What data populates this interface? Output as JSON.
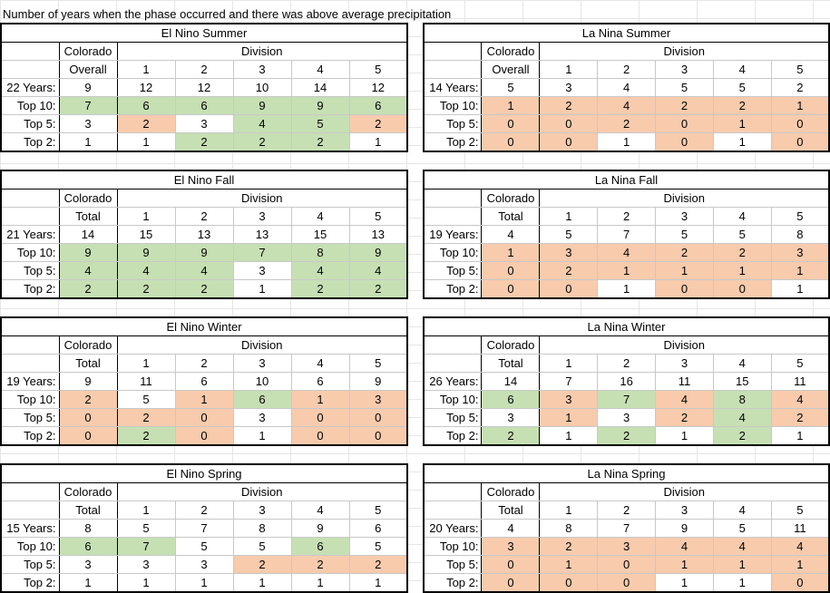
{
  "title": "Number of years when the phase occurred and there was above average precipitation",
  "colors": {
    "green": "#c6e0b4",
    "orange": "#f8cbad",
    "white": "#ffffff"
  },
  "tables": [
    {
      "name": "El Nino Summer",
      "colorado_label": "Colorado",
      "overall_label": "Overall",
      "division_label": "Division",
      "divisions": [
        "1",
        "2",
        "3",
        "4",
        "5"
      ],
      "rows": [
        {
          "label": "22 Years:",
          "values": [
            "9",
            "12",
            "12",
            "10",
            "14",
            "12"
          ],
          "colors": [
            "w",
            "w",
            "w",
            "w",
            "w",
            "w"
          ]
        },
        {
          "label": "Top 10:",
          "values": [
            "7",
            "6",
            "6",
            "9",
            "9",
            "6"
          ],
          "colors": [
            "g",
            "g",
            "g",
            "g",
            "g",
            "g"
          ]
        },
        {
          "label": "Top 5:",
          "values": [
            "3",
            "2",
            "3",
            "4",
            "5",
            "2"
          ],
          "colors": [
            "w",
            "o",
            "w",
            "g",
            "g",
            "o"
          ]
        },
        {
          "label": "Top 2:",
          "values": [
            "1",
            "1",
            "2",
            "2",
            "2",
            "1"
          ],
          "colors": [
            "w",
            "w",
            "g",
            "g",
            "g",
            "w"
          ]
        }
      ]
    },
    {
      "name": "La Nina Summer",
      "colorado_label": "Colorado",
      "overall_label": "Overall",
      "division_label": "Division",
      "divisions": [
        "1",
        "2",
        "3",
        "4",
        "5"
      ],
      "rows": [
        {
          "label": "14 Years:",
          "values": [
            "5",
            "3",
            "4",
            "5",
            "5",
            "2"
          ],
          "colors": [
            "w",
            "w",
            "w",
            "w",
            "w",
            "w"
          ]
        },
        {
          "label": "Top 10:",
          "values": [
            "1",
            "2",
            "4",
            "2",
            "2",
            "1"
          ],
          "colors": [
            "o",
            "o",
            "o",
            "o",
            "o",
            "o"
          ]
        },
        {
          "label": "Top 5:",
          "values": [
            "0",
            "0",
            "2",
            "0",
            "1",
            "0"
          ],
          "colors": [
            "o",
            "o",
            "o",
            "o",
            "o",
            "o"
          ]
        },
        {
          "label": "Top 2:",
          "values": [
            "0",
            "0",
            "1",
            "0",
            "1",
            "0"
          ],
          "colors": [
            "o",
            "o",
            "w",
            "o",
            "w",
            "o"
          ]
        }
      ]
    },
    {
      "name": "El Nino Fall",
      "colorado_label": "Colorado",
      "overall_label": "Total",
      "division_label": "Division",
      "divisions": [
        "1",
        "2",
        "3",
        "4",
        "5"
      ],
      "rows": [
        {
          "label": "21 Years:",
          "values": [
            "14",
            "15",
            "13",
            "13",
            "15",
            "13"
          ],
          "colors": [
            "w",
            "w",
            "w",
            "w",
            "w",
            "w"
          ]
        },
        {
          "label": "Top 10:",
          "values": [
            "9",
            "9",
            "9",
            "7",
            "8",
            "9"
          ],
          "colors": [
            "g",
            "g",
            "g",
            "g",
            "g",
            "g"
          ]
        },
        {
          "label": "Top 5:",
          "values": [
            "4",
            "4",
            "4",
            "3",
            "4",
            "4"
          ],
          "colors": [
            "g",
            "g",
            "g",
            "w",
            "g",
            "g"
          ]
        },
        {
          "label": "Top 2:",
          "values": [
            "2",
            "2",
            "2",
            "1",
            "2",
            "2"
          ],
          "colors": [
            "g",
            "g",
            "g",
            "w",
            "g",
            "g"
          ]
        }
      ]
    },
    {
      "name": "La Nina Fall",
      "colorado_label": "Colorado",
      "overall_label": "Total",
      "division_label": "Division",
      "divisions": [
        "1",
        "2",
        "3",
        "4",
        "5"
      ],
      "rows": [
        {
          "label": "19 Years:",
          "values": [
            "4",
            "5",
            "7",
            "5",
            "5",
            "8"
          ],
          "colors": [
            "w",
            "w",
            "w",
            "w",
            "w",
            "w"
          ]
        },
        {
          "label": "Top 10:",
          "values": [
            "1",
            "3",
            "4",
            "2",
            "2",
            "3"
          ],
          "colors": [
            "o",
            "o",
            "o",
            "o",
            "o",
            "o"
          ]
        },
        {
          "label": "Top 5:",
          "values": [
            "0",
            "2",
            "1",
            "1",
            "1",
            "1"
          ],
          "colors": [
            "o",
            "o",
            "o",
            "o",
            "o",
            "o"
          ]
        },
        {
          "label": "Top 2:",
          "values": [
            "0",
            "0",
            "1",
            "0",
            "0",
            "1"
          ],
          "colors": [
            "o",
            "o",
            "w",
            "o",
            "o",
            "w"
          ]
        }
      ]
    },
    {
      "name": "El Nino Winter",
      "colorado_label": "Colorado",
      "overall_label": "Total",
      "division_label": "Division",
      "divisions": [
        "1",
        "2",
        "3",
        "4",
        "5"
      ],
      "rows": [
        {
          "label": "19 Years:",
          "values": [
            "9",
            "11",
            "6",
            "10",
            "6",
            "9"
          ],
          "colors": [
            "w",
            "w",
            "w",
            "w",
            "w",
            "w"
          ]
        },
        {
          "label": "Top 10:",
          "values": [
            "2",
            "5",
            "1",
            "6",
            "1",
            "3"
          ],
          "colors": [
            "o",
            "w",
            "o",
            "g",
            "o",
            "o"
          ]
        },
        {
          "label": "Top 5:",
          "values": [
            "0",
            "2",
            "0",
            "3",
            "0",
            "0"
          ],
          "colors": [
            "o",
            "o",
            "o",
            "w",
            "o",
            "o"
          ]
        },
        {
          "label": "Top 2:",
          "values": [
            "0",
            "2",
            "0",
            "1",
            "0",
            "0"
          ],
          "colors": [
            "o",
            "g",
            "o",
            "w",
            "o",
            "o"
          ]
        }
      ]
    },
    {
      "name": "La Nina Winter",
      "colorado_label": "Colorado",
      "overall_label": "Total",
      "division_label": "Division",
      "divisions": [
        "1",
        "2",
        "3",
        "4",
        "5"
      ],
      "rows": [
        {
          "label": "26 Years:",
          "values": [
            "14",
            "7",
            "16",
            "11",
            "15",
            "11"
          ],
          "colors": [
            "w",
            "w",
            "w",
            "w",
            "w",
            "w"
          ]
        },
        {
          "label": "Top 10:",
          "values": [
            "6",
            "3",
            "7",
            "4",
            "8",
            "4"
          ],
          "colors": [
            "g",
            "o",
            "g",
            "o",
            "g",
            "o"
          ]
        },
        {
          "label": "Top 5:",
          "values": [
            "3",
            "1",
            "3",
            "2",
            "4",
            "2"
          ],
          "colors": [
            "w",
            "o",
            "w",
            "o",
            "g",
            "o"
          ]
        },
        {
          "label": "Top 2:",
          "values": [
            "2",
            "1",
            "2",
            "1",
            "2",
            "1"
          ],
          "colors": [
            "g",
            "w",
            "g",
            "w",
            "g",
            "w"
          ]
        }
      ]
    },
    {
      "name": "El Nino Spring",
      "colorado_label": "Colorado",
      "overall_label": "Total",
      "division_label": "Division",
      "divisions": [
        "1",
        "2",
        "3",
        "4",
        "5"
      ],
      "rows": [
        {
          "label": "15 Years:",
          "values": [
            "8",
            "5",
            "7",
            "8",
            "9",
            "6"
          ],
          "colors": [
            "w",
            "w",
            "w",
            "w",
            "w",
            "w"
          ]
        },
        {
          "label": "Top 10:",
          "values": [
            "6",
            "7",
            "5",
            "5",
            "6",
            "5"
          ],
          "colors": [
            "g",
            "g",
            "w",
            "w",
            "g",
            "w"
          ]
        },
        {
          "label": "Top 5:",
          "values": [
            "3",
            "3",
            "3",
            "2",
            "2",
            "2"
          ],
          "colors": [
            "w",
            "w",
            "w",
            "o",
            "o",
            "o"
          ]
        },
        {
          "label": "Top 2:",
          "values": [
            "1",
            "1",
            "1",
            "1",
            "1",
            "1"
          ],
          "colors": [
            "w",
            "w",
            "w",
            "w",
            "w",
            "w"
          ]
        }
      ]
    },
    {
      "name": "La Nina Spring",
      "colorado_label": "Colorado",
      "overall_label": "Total",
      "division_label": "Division",
      "divisions": [
        "1",
        "2",
        "3",
        "4",
        "5"
      ],
      "rows": [
        {
          "label": "20 Years:",
          "values": [
            "4",
            "8",
            "7",
            "9",
            "5",
            "11"
          ],
          "colors": [
            "w",
            "w",
            "w",
            "w",
            "w",
            "w"
          ]
        },
        {
          "label": "Top 10:",
          "values": [
            "3",
            "2",
            "3",
            "4",
            "4",
            "4"
          ],
          "colors": [
            "o",
            "o",
            "o",
            "o",
            "o",
            "o"
          ]
        },
        {
          "label": "Top 5:",
          "values": [
            "0",
            "1",
            "0",
            "1",
            "1",
            "1"
          ],
          "colors": [
            "o",
            "o",
            "o",
            "o",
            "o",
            "o"
          ]
        },
        {
          "label": "Top 2:",
          "values": [
            "0",
            "0",
            "0",
            "1",
            "1",
            "0"
          ],
          "colors": [
            "o",
            "o",
            "o",
            "w",
            "w",
            "o"
          ]
        }
      ]
    }
  ]
}
